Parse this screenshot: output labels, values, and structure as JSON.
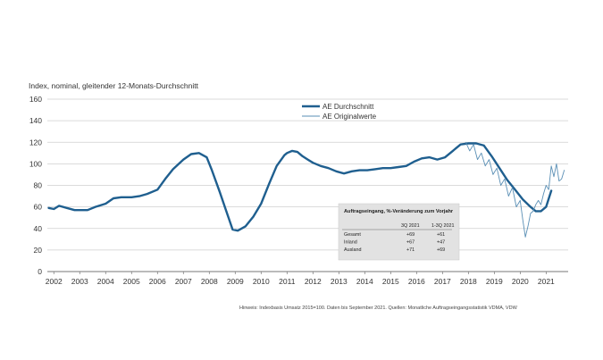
{
  "chart_data": {
    "type": "line",
    "ylabel": "Index, nominal, gleitender 12-Monats-Durchschnitt",
    "ylim": [
      0,
      160
    ],
    "yticks": [
      0,
      20,
      40,
      60,
      80,
      100,
      120,
      140,
      160
    ],
    "xlim": [
      2001.75,
      2021.85
    ],
    "xticks": [
      "2002",
      "2003",
      "2004",
      "2005",
      "2006",
      "2007",
      "2008",
      "2009",
      "2010",
      "2011",
      "2012",
      "2013",
      "2014",
      "2015",
      "2016",
      "2017",
      "2018",
      "2019",
      "2020",
      "2021"
    ],
    "grid": true,
    "legend": {
      "position": "top-center",
      "entries": [
        "AE Durchschnitt",
        "AE Originalwerte"
      ]
    },
    "series": [
      {
        "name": "AE Durchschnitt",
        "color": "#1f5f8f",
        "x": [
          2001.8,
          2002.0,
          2002.2,
          2002.5,
          2002.8,
          2003.0,
          2003.3,
          2003.6,
          2004.0,
          2004.3,
          2004.6,
          2005.0,
          2005.3,
          2005.6,
          2006.0,
          2006.3,
          2006.6,
          2007.0,
          2007.3,
          2007.6,
          2007.9,
          2008.1,
          2008.4,
          2008.7,
          2008.9,
          2009.1,
          2009.4,
          2009.7,
          2010.0,
          2010.3,
          2010.6,
          2010.9,
          2011.0,
          2011.2,
          2011.4,
          2011.6,
          2011.8,
          2012.0,
          2012.3,
          2012.6,
          2012.9,
          2013.2,
          2013.5,
          2013.8,
          2014.1,
          2014.4,
          2014.7,
          2015.0,
          2015.3,
          2015.6,
          2015.9,
          2016.2,
          2016.5,
          2016.8,
          2017.1,
          2017.4,
          2017.7,
          2018.0,
          2018.3,
          2018.6,
          2018.9,
          2019.2,
          2019.5,
          2019.8,
          2020.1,
          2020.4,
          2020.6,
          2020.8,
          2021.0,
          2021.2
        ],
        "values": [
          59,
          58,
          61,
          59,
          57,
          57,
          57,
          60,
          63,
          68,
          69,
          69,
          70,
          72,
          76,
          86,
          95,
          104,
          109,
          110,
          106,
          94,
          74,
          53,
          39,
          38,
          42,
          51,
          63,
          81,
          98,
          108,
          110,
          112,
          111,
          107,
          104,
          101,
          98,
          96,
          93,
          91,
          93,
          94,
          94,
          95,
          96,
          96,
          97,
          98,
          102,
          105,
          106,
          104,
          106,
          112,
          118,
          119,
          119,
          117,
          107,
          96,
          85,
          76,
          67,
          60,
          56,
          56,
          60,
          75
        ]
      },
      {
        "name": "AE Originalwerte",
        "color": "#5a8fb5",
        "x": [
          2017.9,
          2018.05,
          2018.2,
          2018.35,
          2018.5,
          2018.65,
          2018.8,
          2018.95,
          2019.1,
          2019.25,
          2019.4,
          2019.55,
          2019.7,
          2019.85,
          2020.0,
          2020.1,
          2020.2,
          2020.3,
          2020.4,
          2020.5,
          2020.6,
          2020.7,
          2020.8,
          2020.9,
          2021.0,
          2021.1,
          2021.2,
          2021.3,
          2021.4,
          2021.5,
          2021.6,
          2021.7
        ],
        "values": [
          120,
          112,
          118,
          104,
          110,
          98,
          104,
          90,
          96,
          80,
          86,
          70,
          78,
          60,
          66,
          48,
          32,
          42,
          54,
          56,
          62,
          66,
          62,
          72,
          80,
          76,
          98,
          88,
          100,
          84,
          86,
          94
        ]
      }
    ],
    "annotation_table": {
      "title": "Auftragseingang, %-Veränderung zum Vorjahr",
      "headers": [
        "",
        "3Q 2021",
        "1-3Q 2021"
      ],
      "rows": [
        [
          "Gesamt",
          "+69",
          "+61"
        ],
        [
          "Inland",
          "+67",
          "+47"
        ],
        [
          "Ausland",
          "+71",
          "+69"
        ]
      ]
    },
    "footnote": "Hinweis: Indexbasis Umsatz 2015=100. Daten bis September 2021. Quellen: Monatliche Auftragseingangsstatistik VDMA, VDW"
  }
}
